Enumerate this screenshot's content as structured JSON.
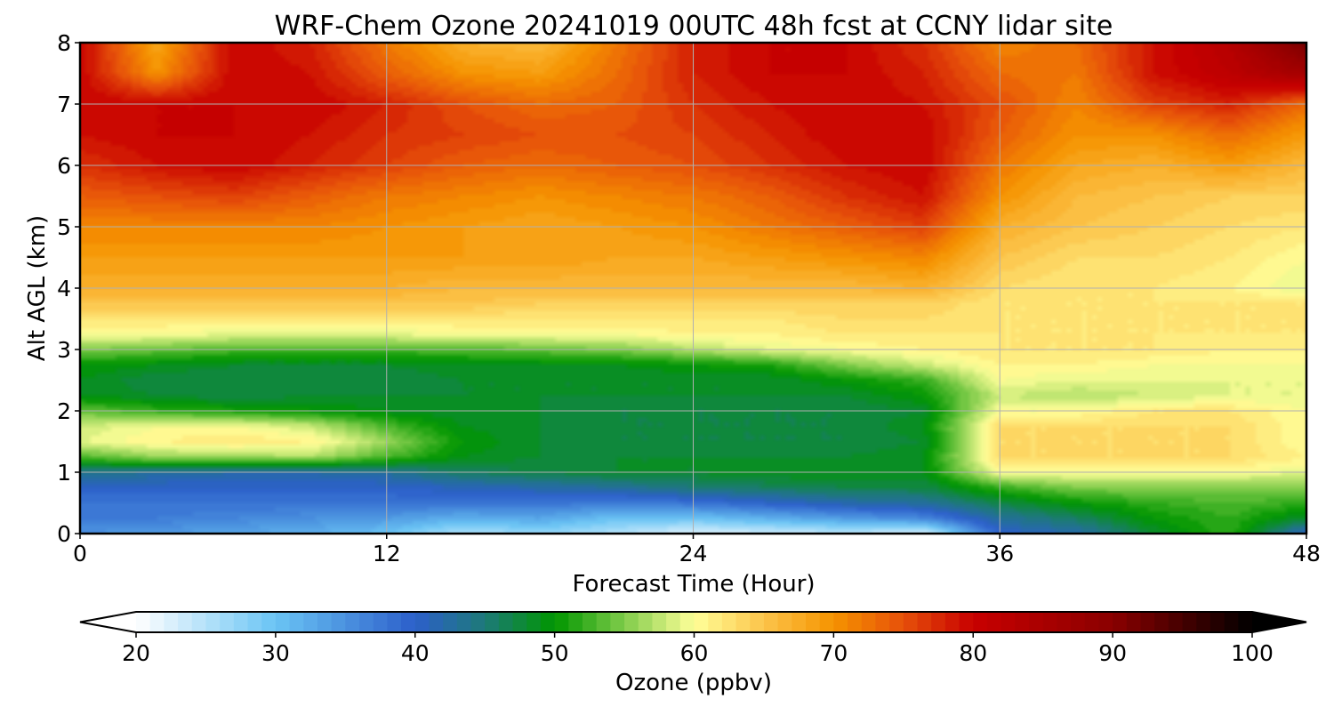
{
  "chart_data": {
    "type": "heatmap",
    "title": "WRF-Chem Ozone  20241019 00UTC 48h fcst at CCNY lidar site",
    "xlabel": "Forecast Time (Hour)",
    "ylabel": "Alt AGL (km)",
    "xlim": [
      0,
      48
    ],
    "ylim": [
      0,
      8
    ],
    "x_ticks": [
      {
        "value": 0,
        "label": "0"
      },
      {
        "value": 12,
        "label": "12"
      },
      {
        "value": 24,
        "label": "24"
      },
      {
        "value": 36,
        "label": "36"
      },
      {
        "value": 48,
        "label": "48"
      }
    ],
    "y_ticks": [
      {
        "value": 0,
        "label": "0"
      },
      {
        "value": 1,
        "label": "1"
      },
      {
        "value": 2,
        "label": "2"
      },
      {
        "value": 3,
        "label": "3"
      },
      {
        "value": 4,
        "label": "4"
      },
      {
        "value": 5,
        "label": "5"
      },
      {
        "value": 6,
        "label": "6"
      },
      {
        "value": 7,
        "label": "7"
      },
      {
        "value": 8,
        "label": "8"
      }
    ],
    "grid": true,
    "x": [
      0,
      3,
      6,
      9,
      12,
      15,
      18,
      21,
      24,
      27,
      30,
      33,
      36,
      39,
      42,
      45,
      48
    ],
    "y": [
      0,
      0.25,
      0.5,
      0.75,
      1,
      1.25,
      1.5,
      1.75,
      2,
      2.25,
      2.5,
      2.75,
      3,
      3.25,
      3.5,
      3.75,
      4,
      4.5,
      5,
      5.5,
      6,
      6.5,
      7,
      7.5,
      8
    ],
    "values": [
      [
        35,
        34,
        33,
        32,
        30,
        25,
        27,
        25,
        22,
        23,
        24,
        22,
        40,
        42,
        48,
        52,
        40
      ],
      [
        37,
        37,
        36,
        35,
        34,
        32,
        33,
        30,
        30,
        32,
        34,
        36,
        43,
        46,
        50,
        52,
        48
      ],
      [
        38,
        38,
        38,
        38,
        38,
        38,
        38,
        37,
        38,
        40,
        42,
        43,
        47,
        50,
        52,
        53,
        52
      ],
      [
        40,
        40,
        40,
        40,
        40,
        41,
        42,
        43,
        45,
        46,
        47,
        47,
        52,
        55,
        55,
        55,
        55
      ],
      [
        44,
        43,
        42,
        42,
        43,
        46,
        47,
        48,
        48,
        49,
        49,
        49,
        60,
        60,
        60,
        60,
        59
      ],
      [
        53,
        56,
        56,
        57,
        53,
        49,
        48,
        48,
        48,
        48,
        48,
        49,
        63,
        63,
        63,
        63,
        61
      ],
      [
        59,
        61,
        62,
        61,
        56,
        50,
        48,
        47,
        47,
        47,
        47,
        48,
        63,
        63,
        63,
        63,
        60
      ],
      [
        58,
        60,
        60,
        58,
        53,
        49,
        48,
        47,
        47,
        47,
        47,
        49,
        63,
        63,
        63,
        63,
        60
      ],
      [
        54,
        52,
        51,
        50,
        49,
        48,
        48,
        47,
        47,
        47,
        47,
        48,
        60,
        60,
        62,
        62,
        60
      ],
      [
        49,
        48,
        47,
        48,
        48,
        48,
        48,
        48,
        48,
        48,
        48,
        50,
        58,
        57,
        58,
        59,
        59
      ],
      [
        49,
        47,
        47,
        47,
        47,
        48,
        48,
        48,
        48,
        48,
        50,
        52,
        60,
        59,
        59,
        59,
        59
      ],
      [
        50,
        49,
        48,
        48,
        48,
        49,
        49,
        49,
        50,
        51,
        55,
        58,
        61,
        61,
        60,
        60,
        60
      ],
      [
        55,
        54,
        53,
        53,
        53,
        53,
        54,
        55,
        57,
        59,
        60,
        61,
        62,
        62,
        62,
        61,
        61
      ],
      [
        60,
        60,
        59,
        59,
        59,
        60,
        60,
        60,
        61,
        61,
        62,
        62,
        62,
        62,
        62,
        62,
        62
      ],
      [
        62,
        62,
        62,
        62,
        62,
        62,
        62,
        62,
        62,
        62,
        63,
        63,
        62,
        62,
        62,
        62,
        62
      ],
      [
        65,
        65,
        65,
        65,
        65,
        65,
        64,
        64,
        64,
        64,
        64,
        64,
        62,
        62,
        62,
        62,
        62
      ],
      [
        67,
        67,
        67,
        67,
        67,
        66,
        66,
        66,
        66,
        66,
        66,
        67,
        63,
        62,
        62,
        61,
        59
      ],
      [
        69,
        69,
        69,
        69,
        69,
        69,
        69,
        68,
        68,
        69,
        70,
        71,
        65,
        63,
        63,
        62,
        60
      ],
      [
        71,
        71,
        71,
        71,
        70,
        69,
        68,
        69,
        70,
        72,
        74,
        76,
        67,
        65,
        64,
        63,
        62
      ],
      [
        74,
        75,
        76,
        74,
        72,
        71,
        70,
        71,
        72,
        74,
        77,
        79,
        70,
        66,
        65,
        64,
        64
      ],
      [
        77,
        79,
        80,
        78,
        76,
        74,
        73,
        74,
        75,
        77,
        79,
        80,
        72,
        68,
        67,
        69,
        66
      ],
      [
        79,
        80,
        80,
        79,
        77,
        76,
        75,
        75,
        76,
        78,
        80,
        80,
        74,
        70,
        70,
        73,
        69
      ],
      [
        80,
        80,
        80,
        80,
        78,
        75,
        73,
        74,
        77,
        79,
        80,
        79,
        75,
        71,
        76,
        78,
        73
      ],
      [
        80,
        70,
        80,
        79,
        74,
        70,
        69,
        73,
        78,
        80,
        80,
        78,
        73,
        72,
        79,
        82,
        86
      ],
      [
        80,
        68,
        80,
        78,
        72,
        67,
        66,
        72,
        78,
        80,
        80,
        77,
        71,
        73,
        79,
        83,
        92
      ]
    ],
    "colorbar": {
      "label": "Ozone  (ppbv)",
      "min": 20,
      "max": 100,
      "step": 1,
      "extend": "both",
      "ticks": [
        {
          "value": 20,
          "label": "20"
        },
        {
          "value": 30,
          "label": "30"
        },
        {
          "value": 40,
          "label": "40"
        },
        {
          "value": 50,
          "label": "50"
        },
        {
          "value": 60,
          "label": "60"
        },
        {
          "value": 70,
          "label": "70"
        },
        {
          "value": 80,
          "label": "80"
        },
        {
          "value": 90,
          "label": "90"
        },
        {
          "value": 100,
          "label": "100"
        }
      ],
      "anchors": [
        {
          "value": 20,
          "color": "#ffffff"
        },
        {
          "value": 30,
          "color": "#6ac4f4"
        },
        {
          "value": 40,
          "color": "#2c5fca"
        },
        {
          "value": 45,
          "color": "#1d7a78"
        },
        {
          "value": 50,
          "color": "#009600"
        },
        {
          "value": 55,
          "color": "#80cc4a"
        },
        {
          "value": 60,
          "color": "#ffff99"
        },
        {
          "value": 65,
          "color": "#fcc44a"
        },
        {
          "value": 70,
          "color": "#f59300"
        },
        {
          "value": 75,
          "color": "#e6500a"
        },
        {
          "value": 80,
          "color": "#c80000"
        },
        {
          "value": 90,
          "color": "#8a0000"
        },
        {
          "value": 100,
          "color": "#000000"
        }
      ],
      "under_color": "#ffffff",
      "over_color": "#000000"
    }
  }
}
